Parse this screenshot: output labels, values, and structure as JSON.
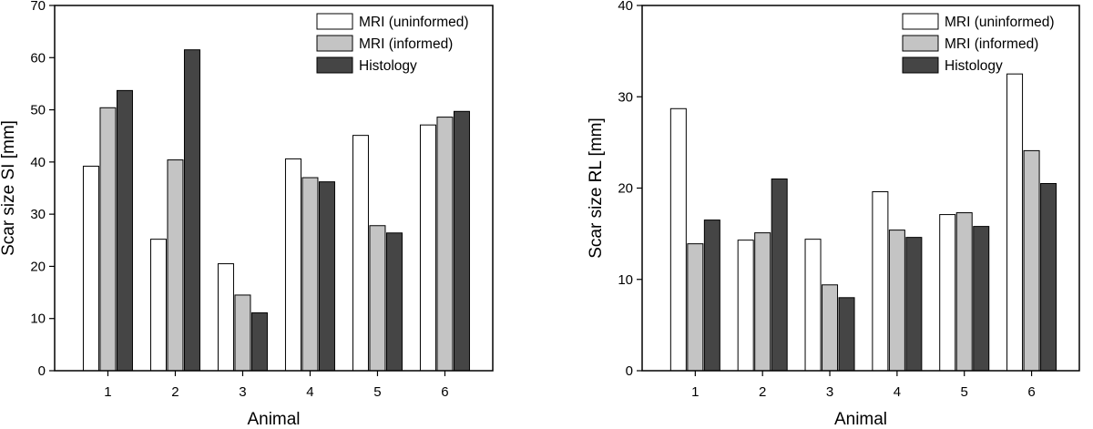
{
  "chart_data": [
    {
      "type": "bar",
      "xlabel": "Animal",
      "ylabel": "Scar size SI [mm]",
      "ylim": [
        0,
        70
      ],
      "yticks": [
        0,
        10,
        20,
        30,
        40,
        50,
        60,
        70
      ],
      "categories": [
        "1",
        "2",
        "3",
        "4",
        "5",
        "6"
      ],
      "legend_position": "top-right",
      "grid": false,
      "series": [
        {
          "name": "MRI (uninformed)",
          "color": "#ffffff",
          "values": [
            39.2,
            25.2,
            20.5,
            40.6,
            45.1,
            47.1
          ]
        },
        {
          "name": "MRI (informed)",
          "color": "#c4c4c4",
          "values": [
            50.4,
            40.4,
            14.5,
            37.0,
            27.8,
            48.6
          ]
        },
        {
          "name": "Histology",
          "color": "#454545",
          "values": [
            53.7,
            61.5,
            11.1,
            36.2,
            26.4,
            49.7
          ]
        }
      ]
    },
    {
      "type": "bar",
      "xlabel": "Animal",
      "ylabel": "Scar size RL [mm]",
      "ylim": [
        0,
        40
      ],
      "yticks": [
        0,
        10,
        20,
        30,
        40
      ],
      "categories": [
        "1",
        "2",
        "3",
        "4",
        "5",
        "6"
      ],
      "legend_position": "top-right",
      "grid": false,
      "series": [
        {
          "name": "MRI (uninformed)",
          "color": "#ffffff",
          "values": [
            28.7,
            14.3,
            14.4,
            19.6,
            17.1,
            32.5
          ]
        },
        {
          "name": "MRI (informed)",
          "color": "#c4c4c4",
          "values": [
            13.9,
            15.1,
            9.4,
            15.4,
            17.3,
            24.1
          ]
        },
        {
          "name": "Histology",
          "color": "#454545",
          "values": [
            16.5,
            21.0,
            8.0,
            14.6,
            15.8,
            20.5
          ]
        }
      ]
    }
  ]
}
